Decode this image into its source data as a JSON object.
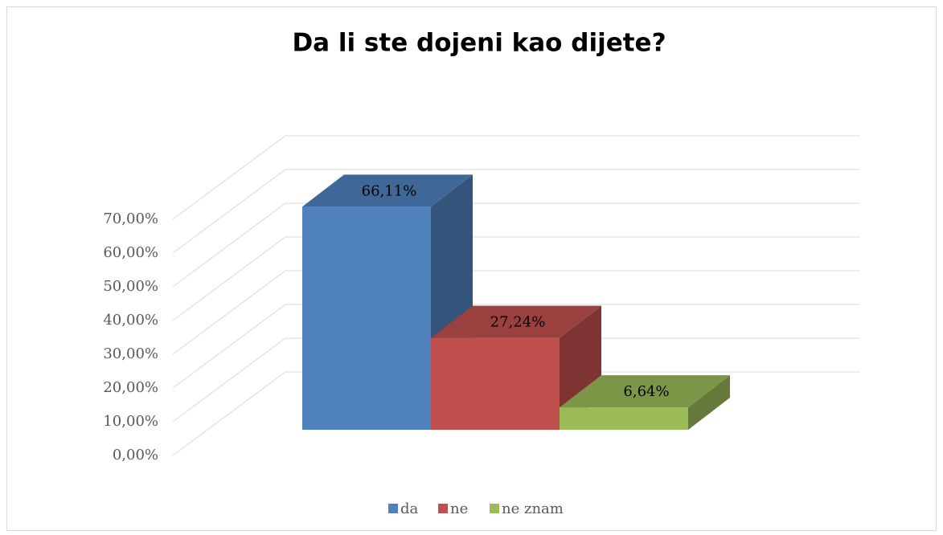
{
  "chart_data": {
    "type": "bar3d",
    "title": "Da li ste dojeni kao dijete?",
    "categories": [
      "da",
      "ne",
      "ne znam"
    ],
    "values": [
      66.11,
      27.24,
      6.64
    ],
    "value_labels": [
      "66,11%",
      "27,24%",
      "6,64%"
    ],
    "colors": [
      "#4f81bd",
      "#c0504d",
      "#9bbb59"
    ],
    "ylim": [
      0,
      70
    ],
    "yticks": [
      {
        "value": 0,
        "label": "0,00%"
      },
      {
        "value": 10,
        "label": "10,00%"
      },
      {
        "value": 20,
        "label": "20,00%"
      },
      {
        "value": 30,
        "label": "30,00%"
      },
      {
        "value": 40,
        "label": "40,00%"
      },
      {
        "value": 50,
        "label": "50,00%"
      },
      {
        "value": 60,
        "label": "60,00%"
      },
      {
        "value": 70,
        "label": "70,00%"
      }
    ],
    "grid": true,
    "legend": "bottom"
  }
}
